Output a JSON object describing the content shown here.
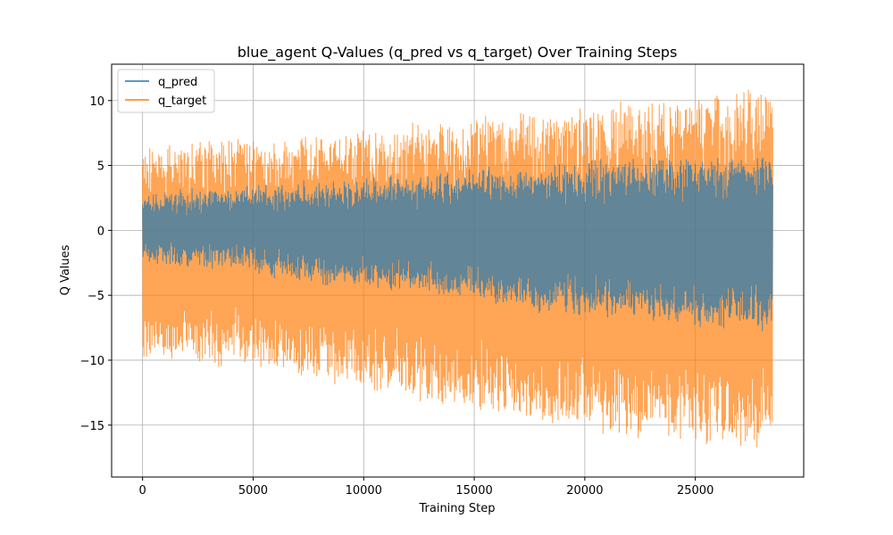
{
  "chart_data": {
    "type": "line",
    "title": "blue_agent Q-Values (q_pred vs q_target) Over Training Steps",
    "xlabel": "Training Step",
    "ylabel": "Q Values",
    "xlim": [
      -1400,
      29900
    ],
    "ylim": [
      -19.0,
      12.8
    ],
    "xticks": [
      0,
      5000,
      10000,
      15000,
      20000,
      25000
    ],
    "yticks": [
      10,
      5,
      0,
      -5,
      -10,
      -15
    ],
    "xtick_labels": [
      "0",
      "5000",
      "10000",
      "15000",
      "20000",
      "25000"
    ],
    "ytick_labels": [
      "10",
      "5",
      "0",
      "−5",
      "−10",
      "−15"
    ],
    "grid": true,
    "legend_position": "top-left",
    "series": [
      {
        "name": "q_pred",
        "color": "#1f77b4",
        "x": [
          0,
          2500,
          5000,
          7500,
          10000,
          12500,
          15000,
          17500,
          20000,
          22500,
          25000,
          27500,
          28500
        ],
        "lower": [
          -2.5,
          -2.3,
          -2.8,
          -3.8,
          -4.0,
          -4.5,
          -5.0,
          -5.8,
          -6.2,
          -6.5,
          -7.0,
          -7.2,
          -7.3
        ],
        "upper": [
          2.5,
          2.8,
          3.1,
          3.4,
          3.6,
          4.0,
          4.3,
          4.6,
          4.9,
          5.1,
          5.3,
          5.4,
          5.5
        ]
      },
      {
        "name": "q_target",
        "color": "#ff7f0e",
        "x": [
          0,
          2500,
          5000,
          7500,
          10000,
          12500,
          15000,
          17500,
          20000,
          22500,
          25000,
          27500,
          28500
        ],
        "lower": [
          -9.5,
          -9.8,
          -10.3,
          -11.0,
          -11.8,
          -12.8,
          -13.8,
          -14.5,
          -15.0,
          -15.5,
          -16.2,
          -16.5,
          -16.0
        ],
        "upper": [
          6.2,
          6.5,
          6.8,
          7.2,
          7.5,
          7.8,
          8.3,
          8.7,
          9.2,
          9.6,
          10.0,
          10.5,
          10.5
        ]
      }
    ]
  }
}
